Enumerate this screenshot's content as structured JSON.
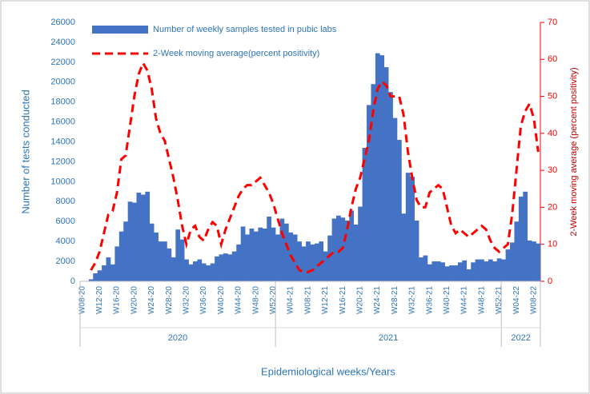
{
  "chart_data": {
    "type": "bar_line",
    "y_label": "Number of tests conducted",
    "y2_label": "2-Week moving average (percent positivity)",
    "x_label": "Epidemiological weeks/Years",
    "categories": [
      "W08-20",
      null,
      null,
      null,
      "W12-20",
      null,
      null,
      null,
      "W16-20",
      null,
      null,
      null,
      "W20-20",
      null,
      null,
      null,
      "W24-20",
      null,
      null,
      null,
      "W28-20",
      null,
      null,
      null,
      "W32-20",
      null,
      null,
      null,
      "W36-20",
      null,
      null,
      null,
      "W40-20",
      null,
      null,
      null,
      "W44-20",
      null,
      null,
      null,
      "W48-20",
      null,
      null,
      null,
      "W52-20",
      null,
      null,
      null,
      "W04-21",
      null,
      null,
      null,
      "W08-21",
      null,
      null,
      null,
      "W12-21",
      null,
      null,
      null,
      "W16-21",
      null,
      null,
      null,
      "W20-21",
      null,
      null,
      null,
      "W24-21",
      null,
      null,
      null,
      "W28-21",
      null,
      null,
      null,
      "W32-21",
      null,
      null,
      null,
      "W36-21",
      null,
      null,
      null,
      "W40-21",
      null,
      null,
      null,
      "W44-21",
      null,
      null,
      null,
      "W48-21",
      null,
      null,
      null,
      "W52-21",
      null,
      null,
      null,
      "W04-22",
      null,
      null,
      null,
      "W08-22",
      null
    ],
    "x_groups": [
      {
        "label": "2020",
        "count": 45
      },
      {
        "label": "2021",
        "count": 52
      },
      {
        "label": "2022",
        "count": 9
      }
    ],
    "series": [
      {
        "name": "Number of weekly samples tested in pubic labs",
        "kind": "bar",
        "color": "#4472c4",
        "values": [
          0,
          0,
          200,
          800,
          1100,
          1600,
          2400,
          1700,
          3500,
          5000,
          6000,
          8000,
          7900,
          8900,
          8700,
          9000,
          5800,
          4900,
          4000,
          4000,
          3300,
          2400,
          5200,
          4200,
          2200,
          1700,
          2000,
          2200,
          1800,
          1600,
          1800,
          2500,
          2700,
          2800,
          2700,
          3000,
          3700,
          5500,
          4700,
          5300,
          5000,
          5400,
          5300,
          6500,
          5400,
          4700,
          6300,
          5800,
          4900,
          4700,
          4000,
          3500,
          4000,
          3700,
          3800,
          4000,
          3000,
          4600,
          6300,
          6600,
          6400,
          6100,
          7100,
          5700,
          7500,
          13400,
          17700,
          19800,
          22900,
          22700,
          21500,
          19000,
          16400,
          14200,
          6800,
          10900,
          10500,
          6100,
          2400,
          2600,
          1700,
          2000,
          2000,
          1900,
          1500,
          1600,
          1600,
          1900,
          2100,
          1200,
          1900,
          2200,
          2200,
          2000,
          2200,
          2000,
          2300,
          2200,
          3200,
          3900,
          6000,
          8500,
          9000,
          4100,
          4000,
          3800
        ]
      },
      {
        "name": "2-Week moving average(percent positivity)",
        "kind": "line",
        "axis": "y2",
        "color": "#ff0000",
        "values": [
          null,
          null,
          3,
          5,
          8,
          13,
          18,
          19,
          24,
          33,
          34,
          42,
          50,
          56,
          59,
          57,
          52,
          44,
          40,
          38,
          33,
          28,
          22,
          15,
          10,
          14,
          15,
          12,
          11,
          14,
          16,
          15,
          10,
          14,
          17,
          20,
          23,
          25,
          26,
          26,
          27,
          28,
          26,
          24,
          21,
          17,
          13,
          10,
          7,
          5,
          3,
          2.5,
          2.5,
          3,
          4,
          5,
          6,
          7,
          8,
          8,
          9,
          14,
          20,
          25,
          28,
          33,
          38,
          46,
          52,
          54,
          53,
          50,
          50,
          50,
          45,
          35,
          28,
          22,
          20,
          20,
          24,
          25,
          26,
          25,
          20,
          15,
          13,
          14,
          13,
          12,
          13,
          14,
          15,
          14,
          11,
          9,
          8,
          9,
          10,
          18,
          30,
          42,
          46,
          48,
          44,
          35
        ]
      }
    ],
    "ylim": [
      0,
      26000
    ],
    "yticks": [
      0,
      2000,
      4000,
      6000,
      8000,
      10000,
      12000,
      14000,
      16000,
      18000,
      20000,
      22000,
      24000,
      26000
    ],
    "y2lim": [
      0,
      70
    ],
    "y2ticks": [
      0,
      10,
      20,
      30,
      40,
      50,
      60,
      70
    ],
    "legend": "top-left",
    "grid": false
  }
}
